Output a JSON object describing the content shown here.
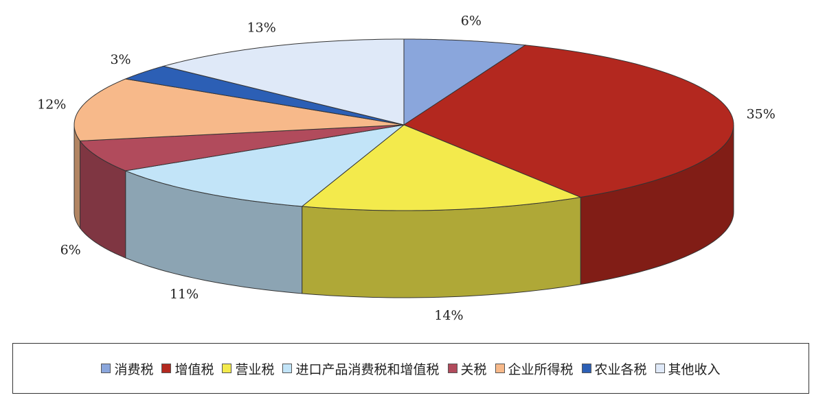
{
  "chart_data": {
    "type": "pie3d",
    "categories": [
      "消费税",
      "增值税",
      "营业税",
      "进口产品消费税和增值税",
      "关税",
      "企业所得税",
      "农业各税",
      "其他收入"
    ],
    "values": [
      6,
      35,
      14,
      11,
      6,
      12,
      3,
      13
    ],
    "value_labels": [
      "6%",
      "35%",
      "14%",
      "11%",
      "6%",
      "12%",
      "3%",
      "13%"
    ],
    "colors": [
      "#8aa6dc",
      "#b3281f",
      "#f3ea4c",
      "#c2e4f8",
      "#b14b5c",
      "#f7b98a",
      "#2c5fb5",
      "#dfe9f8"
    ],
    "legend": "bottom"
  }
}
